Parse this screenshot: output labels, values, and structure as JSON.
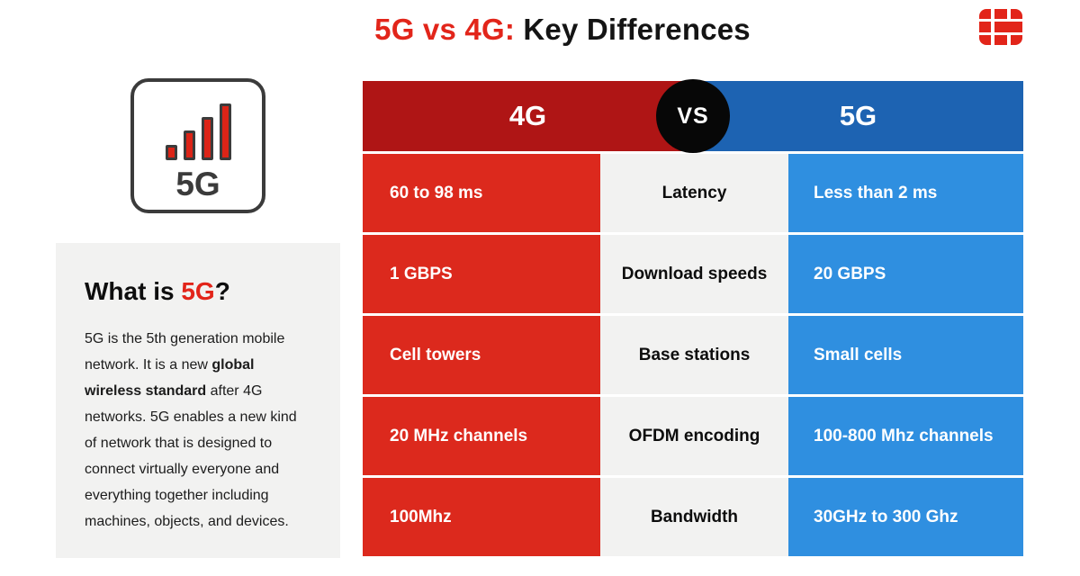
{
  "title": {
    "highlight": "5G vs 4G:",
    "rest": " Key Differences"
  },
  "brand": {
    "name": "fortinet-logo"
  },
  "icon_card": {
    "label": "5G"
  },
  "about": {
    "heading_prefix": "What is ",
    "heading_highlight": "5G",
    "heading_suffix": "?",
    "body_before": "5G is the 5th generation mobile network. It is a new ",
    "body_bold": "global wireless standard",
    "body_after": " after 4G networks. 5G enables a new kind of network that is designed to connect virtually everyone and everything together including machines, objects, and devices."
  },
  "table": {
    "col_4g": "4G",
    "vs": "VS",
    "col_5g": "5G",
    "rows": [
      {
        "g4": "60 to 98 ms",
        "feature": "Latency",
        "g5": "Less than 2 ms"
      },
      {
        "g4": "1 GBPS",
        "feature": "Download speeds",
        "g5": "20 GBPS"
      },
      {
        "g4": "Cell towers",
        "feature": "Base stations",
        "g5": "Small cells"
      },
      {
        "g4": "20 MHz channels",
        "feature": "OFDM encoding",
        "g5": "100-800 Mhz channels"
      },
      {
        "g4": "100Mhz",
        "feature": "Bandwidth",
        "g5": "30GHz to 300 Ghz"
      }
    ]
  },
  "colors": {
    "brand_red": "#e2251a",
    "header_red": "#af1515",
    "header_blue": "#1d63b2",
    "cell_red": "#dc291d",
    "cell_blue": "#2f8fe0",
    "panel_gray": "#f2f2f1",
    "vs_black": "#070707"
  }
}
